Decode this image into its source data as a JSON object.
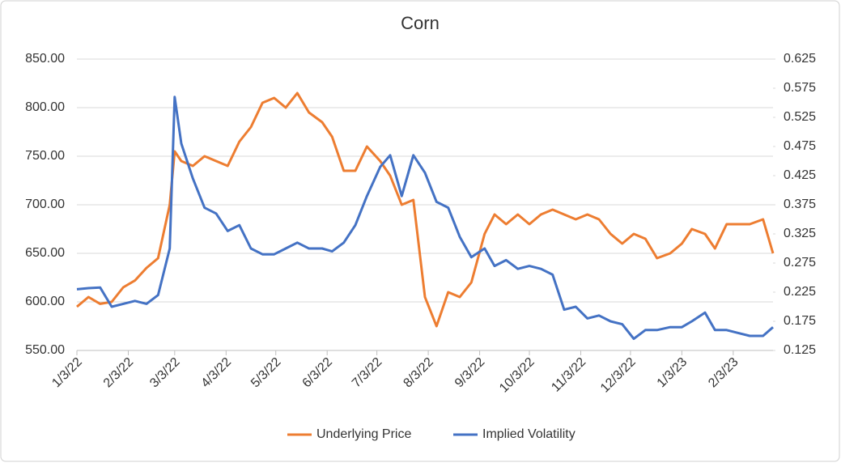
{
  "chart_data": {
    "type": "line",
    "title": "Corn",
    "x": [
      "1/3/22",
      "1/10/22",
      "1/17/22",
      "1/24/22",
      "1/31/22",
      "2/7/22",
      "2/14/22",
      "2/21/22",
      "2/28/22",
      "3/3/22",
      "3/7/22",
      "3/14/22",
      "3/21/22",
      "3/28/22",
      "4/4/22",
      "4/11/22",
      "4/18/22",
      "4/25/22",
      "5/2/22",
      "5/9/22",
      "5/16/22",
      "5/23/22",
      "5/31/22",
      "6/6/22",
      "6/13/22",
      "6/20/22",
      "6/27/22",
      "7/5/22",
      "7/11/22",
      "7/18/22",
      "7/25/22",
      "8/1/22",
      "8/8/22",
      "8/15/22",
      "8/22/22",
      "8/29/22",
      "9/6/22",
      "9/12/22",
      "9/19/22",
      "9/26/22",
      "10/3/22",
      "10/10/22",
      "10/17/22",
      "10/24/22",
      "10/31/22",
      "11/7/22",
      "11/14/22",
      "11/21/22",
      "11/28/22",
      "12/5/22",
      "12/12/22",
      "12/19/22",
      "12/27/22",
      "1/3/23",
      "1/9/23",
      "1/17/23",
      "1/23/23",
      "1/30/23",
      "2/6/23",
      "2/13/23",
      "2/21/23",
      "2/27/23"
    ],
    "series": [
      {
        "name": "Underlying Price",
        "color": "#ed7d31",
        "axis": "y",
        "values": [
          595,
          605,
          598,
          600,
          615,
          622,
          635,
          645,
          700,
          755,
          745,
          740,
          750,
          745,
          740,
          765,
          780,
          805,
          810,
          800,
          815,
          795,
          785,
          770,
          735,
          735,
          760,
          745,
          730,
          700,
          705,
          605,
          575,
          610,
          605,
          620,
          670,
          690,
          680,
          690,
          680,
          690,
          695,
          690,
          685,
          690,
          685,
          670,
          660,
          670,
          665,
          645,
          650,
          660,
          675,
          670,
          655,
          680,
          680,
          680,
          685,
          650
        ]
      },
      {
        "name": "Implied Volatility",
        "color": "#4472c4",
        "axis": "y2",
        "values": [
          0.23,
          0.232,
          0.233,
          0.2,
          0.205,
          0.21,
          0.205,
          0.22,
          0.3,
          0.56,
          0.48,
          0.42,
          0.37,
          0.36,
          0.33,
          0.34,
          0.3,
          0.29,
          0.29,
          0.3,
          0.31,
          0.3,
          0.3,
          0.295,
          0.31,
          0.34,
          0.39,
          0.44,
          0.46,
          0.39,
          0.46,
          0.43,
          0.38,
          0.37,
          0.32,
          0.285,
          0.3,
          0.27,
          0.28,
          0.265,
          0.27,
          0.265,
          0.255,
          0.195,
          0.2,
          0.18,
          0.185,
          0.175,
          0.17,
          0.145,
          0.16,
          0.16,
          0.165,
          0.165,
          0.175,
          0.19,
          0.16,
          0.16,
          0.155,
          0.15,
          0.15,
          0.165
        ]
      }
    ],
    "xticks": [
      "1/3/22",
      "2/3/22",
      "3/3/22",
      "4/3/22",
      "5/3/22",
      "6/3/22",
      "7/3/22",
      "8/3/22",
      "9/3/22",
      "10/3/22",
      "11/3/22",
      "12/3/22",
      "1/3/23",
      "2/3/23"
    ],
    "ylim": [
      550,
      850
    ],
    "yticks": [
      {
        "value": 550,
        "label": "550.00"
      },
      {
        "value": 600,
        "label": "600.00"
      },
      {
        "value": 650,
        "label": "650.00"
      },
      {
        "value": 700,
        "label": "700.00"
      },
      {
        "value": 750,
        "label": "750.00"
      },
      {
        "value": 800,
        "label": "800.00"
      },
      {
        "value": 850,
        "label": "850.00"
      }
    ],
    "y2lim": [
      0.125,
      0.625
    ],
    "y2ticks": [
      0.125,
      0.175,
      0.225,
      0.275,
      0.325,
      0.375,
      0.425,
      0.475,
      0.525,
      0.575,
      0.625
    ],
    "grid": true,
    "legend": "bottom"
  }
}
